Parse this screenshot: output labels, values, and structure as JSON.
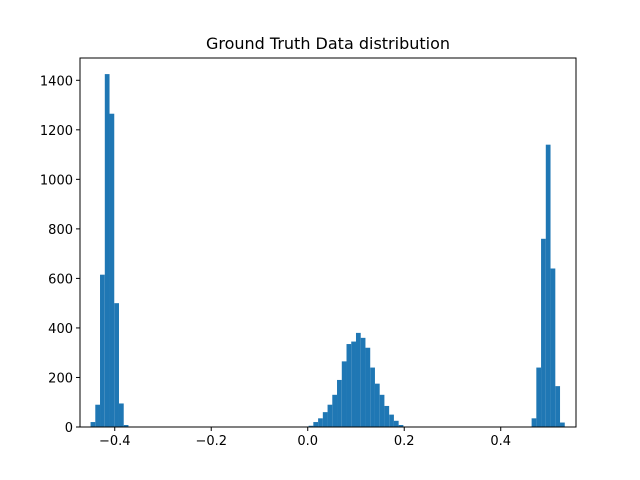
{
  "chart_data": {
    "type": "bar",
    "title": "Ground Truth Data distribution",
    "xlabel": "",
    "ylabel": "",
    "xlim": [
      -0.472,
      0.556
    ],
    "ylim": [
      0,
      1490
    ],
    "x_ticks": [
      -0.4,
      -0.2,
      0.0,
      0.2,
      0.4
    ],
    "x_tick_labels": [
      "−0.4",
      "−0.2",
      "0.0",
      "0.2",
      "0.4"
    ],
    "y_ticks": [
      0,
      200,
      400,
      600,
      800,
      1000,
      1200,
      1400
    ],
    "y_tick_labels": [
      "0",
      "200",
      "400",
      "600",
      "800",
      "1000",
      "1200",
      "1400"
    ],
    "bin_width": 0.00982,
    "bar_color": "#1f77b4",
    "grid": false,
    "legend": "none",
    "bins": [
      {
        "x": -0.4452,
        "value": 20
      },
      {
        "x": -0.4354,
        "value": 90
      },
      {
        "x": -0.4256,
        "value": 615
      },
      {
        "x": -0.4157,
        "value": 1425
      },
      {
        "x": -0.4059,
        "value": 1265
      },
      {
        "x": -0.3961,
        "value": 500
      },
      {
        "x": -0.3863,
        "value": 95
      },
      {
        "x": -0.3765,
        "value": 8
      },
      {
        "x": 0.0067,
        "value": 5
      },
      {
        "x": 0.0165,
        "value": 20
      },
      {
        "x": 0.0264,
        "value": 35
      },
      {
        "x": 0.0362,
        "value": 60
      },
      {
        "x": 0.046,
        "value": 90
      },
      {
        "x": 0.0558,
        "value": 130
      },
      {
        "x": 0.0656,
        "value": 190
      },
      {
        "x": 0.0755,
        "value": 265
      },
      {
        "x": 0.0853,
        "value": 335
      },
      {
        "x": 0.0951,
        "value": 345
      },
      {
        "x": 0.1049,
        "value": 380
      },
      {
        "x": 0.1147,
        "value": 360
      },
      {
        "x": 0.1246,
        "value": 320
      },
      {
        "x": 0.1344,
        "value": 240
      },
      {
        "x": 0.1442,
        "value": 175
      },
      {
        "x": 0.154,
        "value": 130
      },
      {
        "x": 0.1638,
        "value": 85
      },
      {
        "x": 0.1737,
        "value": 50
      },
      {
        "x": 0.1835,
        "value": 25
      },
      {
        "x": 0.1933,
        "value": 8
      },
      {
        "x": 0.4689,
        "value": 35
      },
      {
        "x": 0.4787,
        "value": 240
      },
      {
        "x": 0.4885,
        "value": 760
      },
      {
        "x": 0.4983,
        "value": 1140
      },
      {
        "x": 0.5082,
        "value": 640
      },
      {
        "x": 0.518,
        "value": 165
      },
      {
        "x": 0.5278,
        "value": 18
      }
    ]
  }
}
